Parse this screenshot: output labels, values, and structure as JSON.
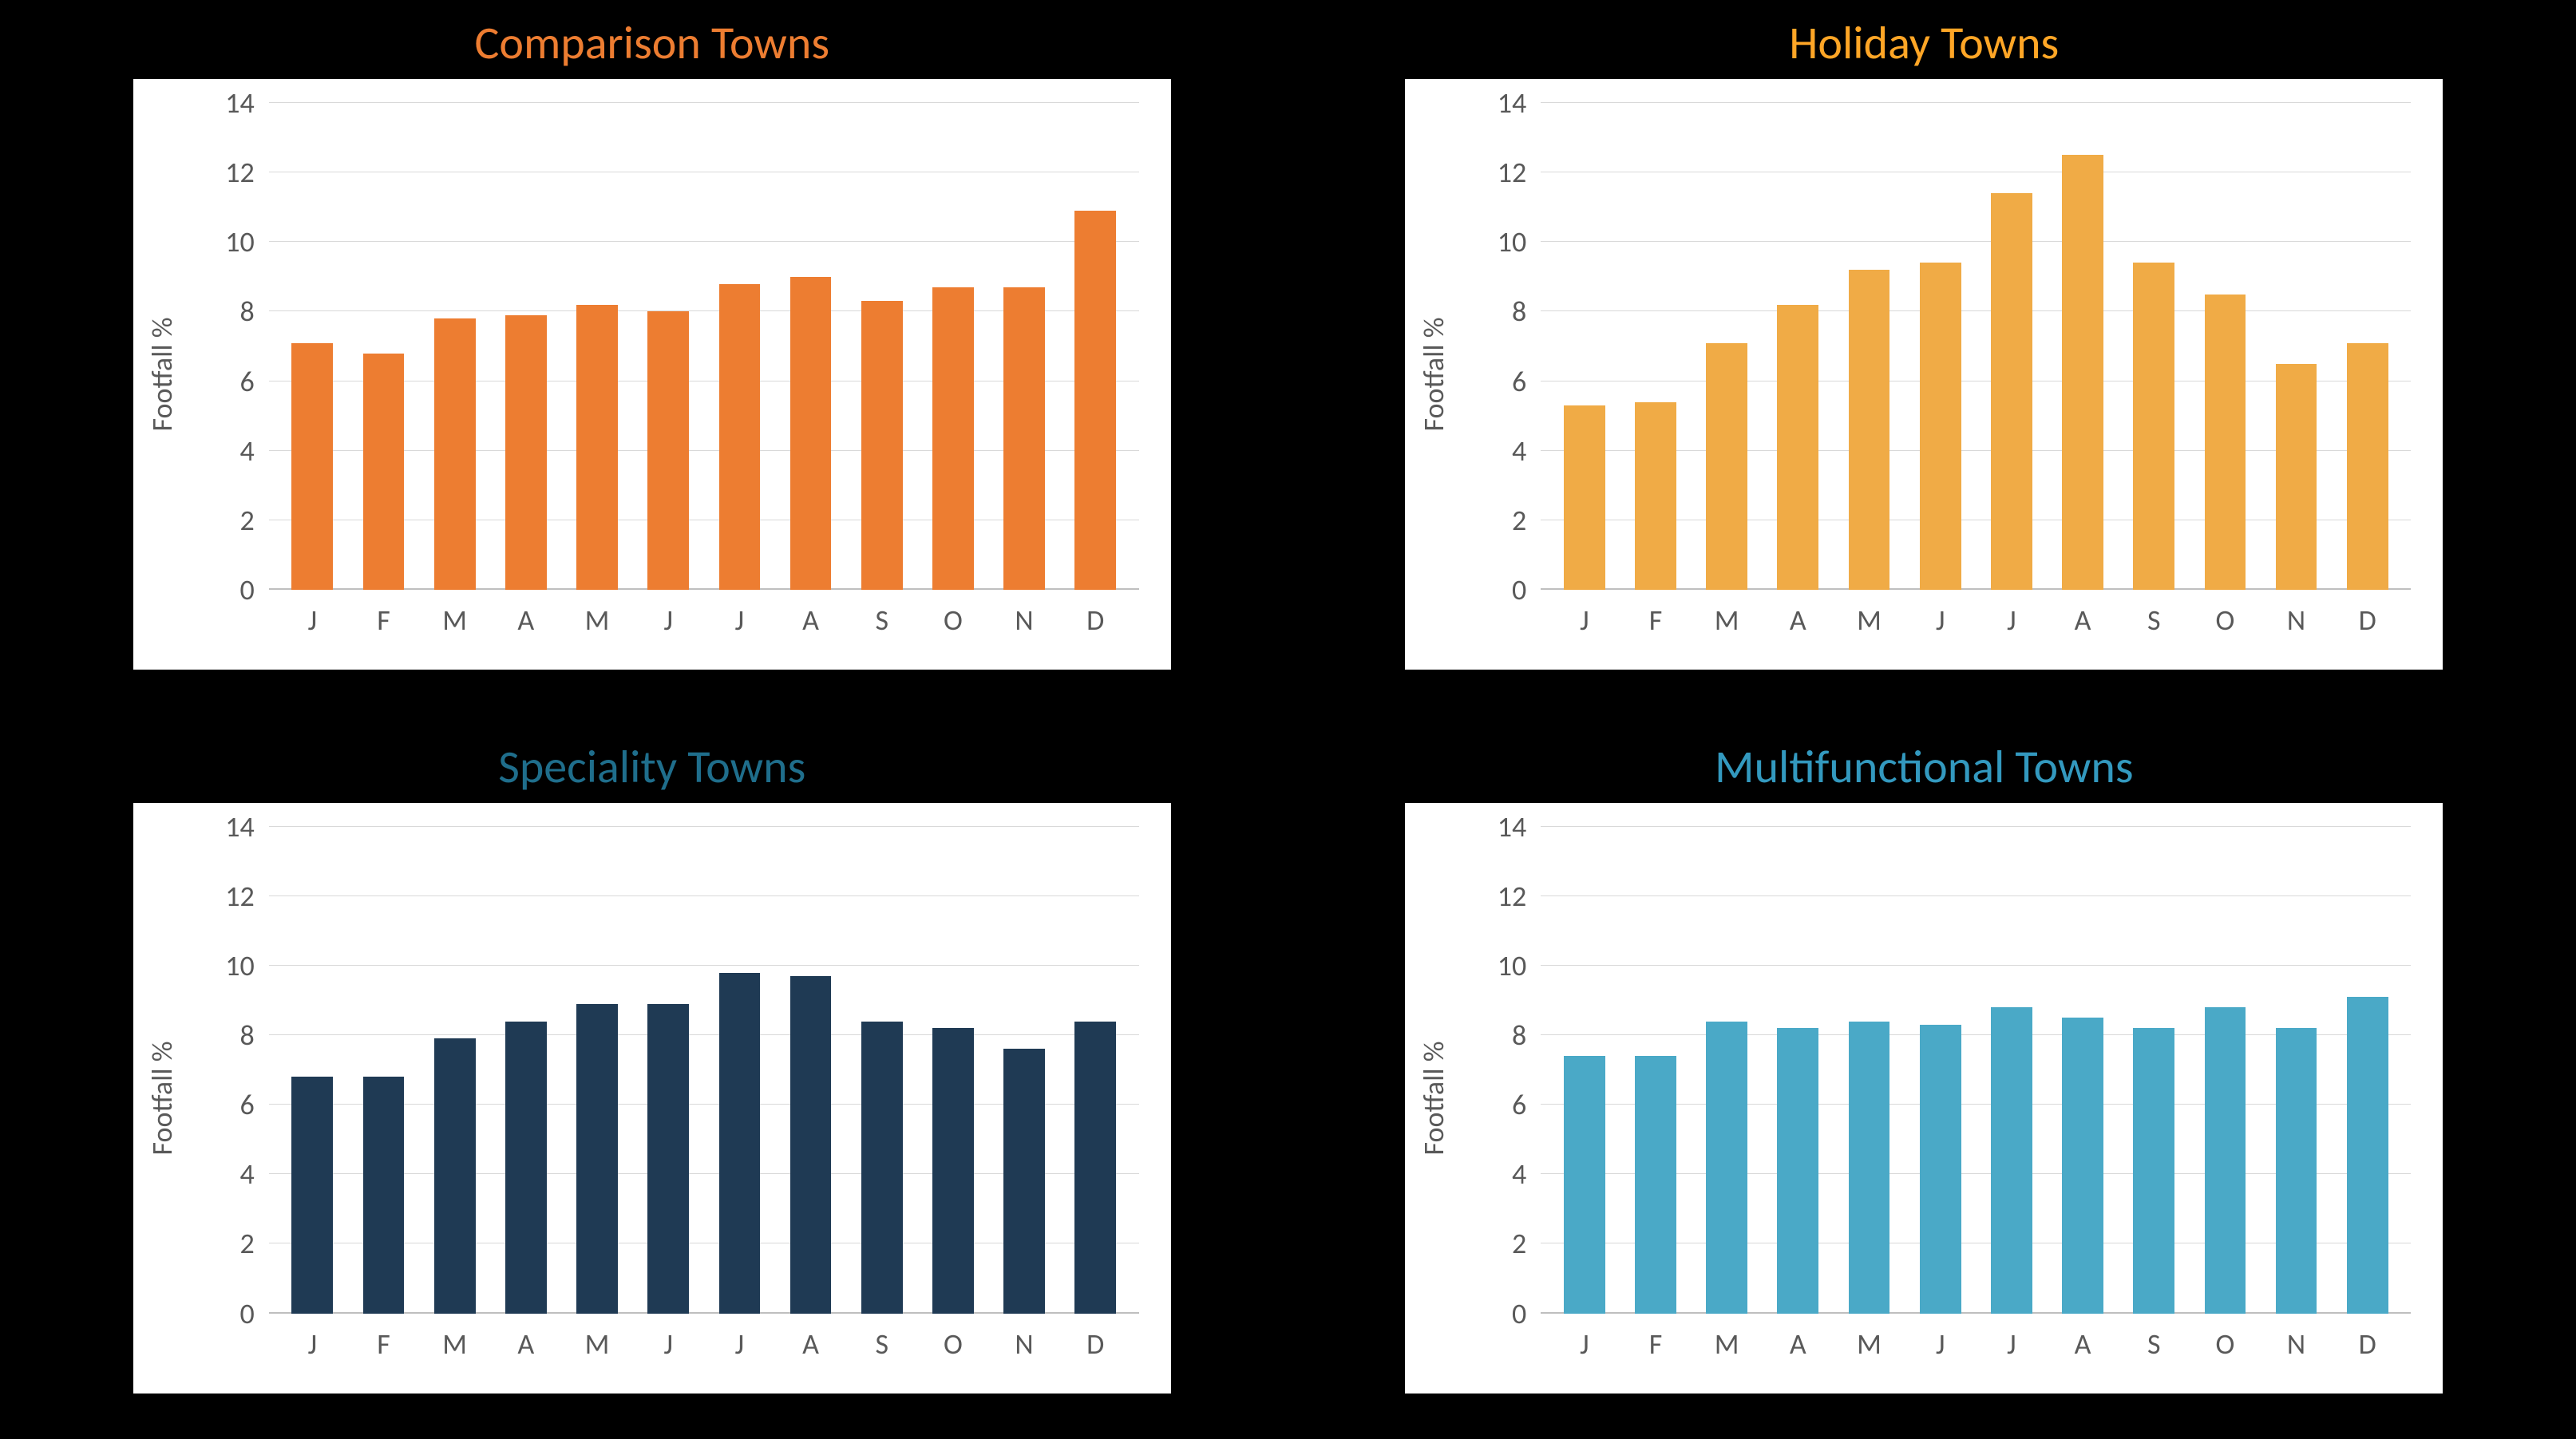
{
  "page_background": "#000000",
  "chart_background": "#ffffff",
  "grid_color": "#d9d9d9",
  "baseline_color": "#bfbfbf",
  "axis_label_color": "#595959",
  "axis_label_fontsize": 36,
  "title_fontsize": 58,
  "categories": [
    "J",
    "F",
    "M",
    "A",
    "M",
    "J",
    "J",
    "A",
    "S",
    "O",
    "N",
    "D"
  ],
  "y_axis_label": "Footfall %",
  "charts": [
    {
      "id": "comparison",
      "title": "Comparison Towns",
      "title_color": "#ed7d31",
      "bar_color": "#ed7d31",
      "ylim": [
        0,
        14
      ],
      "ytick_step": 2,
      "bar_width": 0.58,
      "values": [
        7.1,
        6.8,
        7.8,
        7.9,
        8.2,
        8.0,
        8.8,
        9.0,
        8.3,
        8.7,
        8.7,
        10.9
      ]
    },
    {
      "id": "holiday",
      "title": "Holiday Towns",
      "title_color": "#ffa626",
      "bar_color": "#f0ab46",
      "ylim": [
        0,
        14
      ],
      "ytick_step": 2,
      "bar_width": 0.58,
      "values": [
        5.3,
        5.4,
        7.1,
        8.2,
        9.2,
        9.4,
        11.4,
        12.5,
        9.4,
        8.5,
        6.5,
        7.1
      ]
    },
    {
      "id": "speciality",
      "title": "Speciality Towns",
      "title_color": "#1f6e8c",
      "bar_color": "#1f3a54",
      "ylim": [
        0,
        14
      ],
      "ytick_step": 2,
      "bar_width": 0.58,
      "values": [
        6.8,
        6.8,
        7.9,
        8.4,
        8.9,
        8.9,
        9.8,
        9.7,
        8.4,
        8.2,
        7.6,
        8.4
      ]
    },
    {
      "id": "multifunctional",
      "title": "Multifunctional Towns",
      "title_color": "#3399bf",
      "bar_color": "#4aa9c7",
      "ylim": [
        0,
        14
      ],
      "ytick_step": 2,
      "bar_width": 0.58,
      "values": [
        7.4,
        7.4,
        8.4,
        8.2,
        8.4,
        8.3,
        8.8,
        8.5,
        8.2,
        8.8,
        8.2,
        9.1
      ]
    }
  ]
}
